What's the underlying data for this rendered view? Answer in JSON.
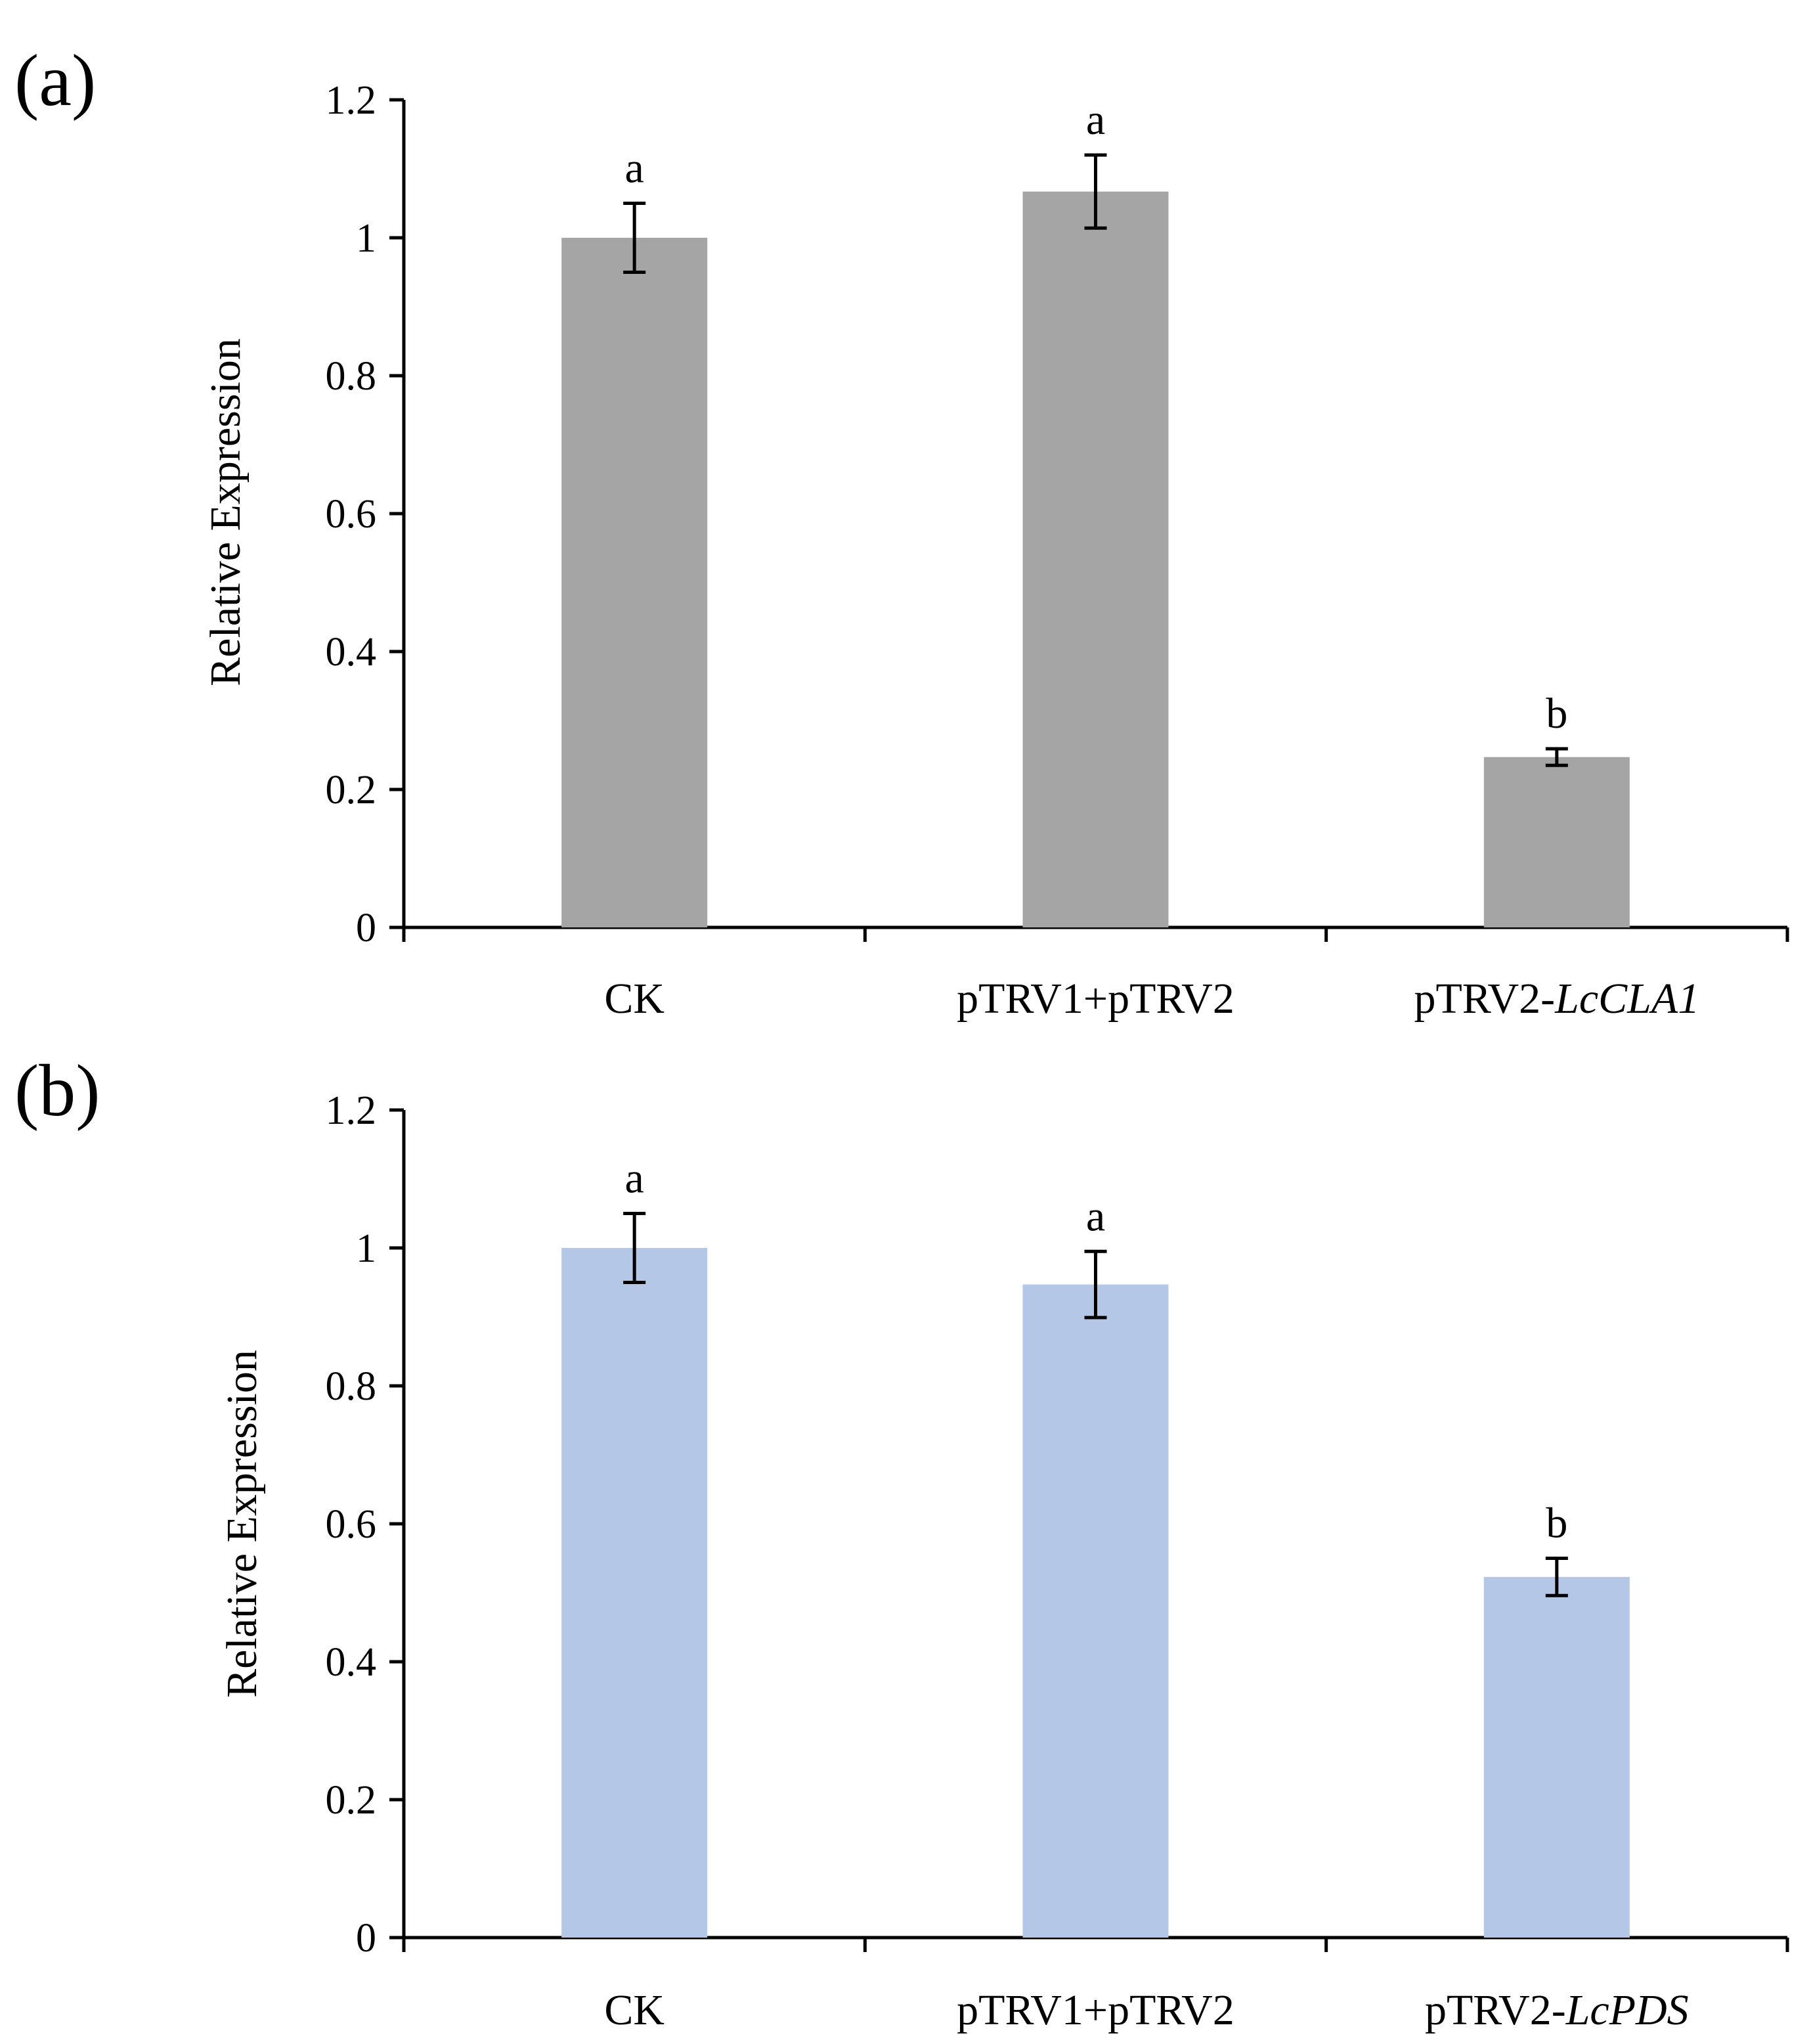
{
  "chart_data": [
    {
      "panel_label": "(a)",
      "type": "bar",
      "title": "",
      "xlabel": "",
      "ylabel": "Relative Expression",
      "ylim": [
        0,
        1.2
      ],
      "yticks": [
        "0",
        "0.2",
        "0.4",
        "0.6",
        "0.8",
        "1",
        "1.2"
      ],
      "ytick_values": [
        0,
        0.2,
        0.4,
        0.6,
        0.8,
        1.0,
        1.2
      ],
      "categories": [
        {
          "plain": "CK",
          "italic": ""
        },
        {
          "plain": "pTRV1+pTRV2",
          "italic": ""
        },
        {
          "plain": "pTRV2-",
          "italic": "LcCLA1"
        }
      ],
      "values": [
        1.0,
        1.067,
        0.247
      ],
      "errors": [
        0.05,
        0.053,
        0.012
      ],
      "significance": [
        "a",
        "a",
        "b"
      ],
      "bar_color": "#a5a5a5"
    },
    {
      "panel_label": "(b)",
      "type": "bar",
      "title": "",
      "xlabel": "",
      "ylabel": "Relative Expression",
      "ylim": [
        0,
        1.2
      ],
      "yticks": [
        "0",
        "0.2",
        "0.4",
        "0.6",
        "0.8",
        "1",
        "1.2"
      ],
      "ytick_values": [
        0,
        0.2,
        0.4,
        0.6,
        0.8,
        1.0,
        1.2
      ],
      "categories": [
        {
          "plain": "CK",
          "italic": ""
        },
        {
          "plain": "pTRV1+pTRV2",
          "italic": ""
        },
        {
          "plain": "pTRV2-",
          "italic": "LcPDS"
        }
      ],
      "values": [
        1.0,
        0.947,
        0.523
      ],
      "errors": [
        0.05,
        0.048,
        0.027
      ],
      "significance": [
        "a",
        "a",
        "b"
      ],
      "bar_color": "#b4c7e7"
    }
  ]
}
